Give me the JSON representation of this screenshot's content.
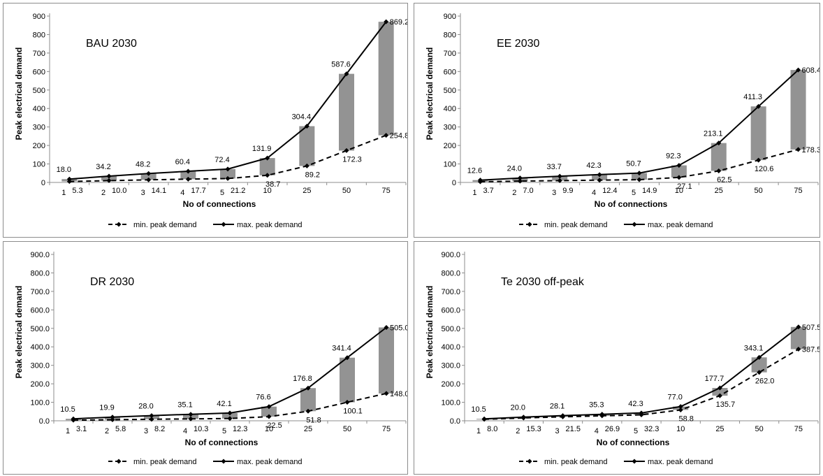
{
  "colors": {
    "bar": "#939393",
    "line": "#000000",
    "axis": "#8c8c8c"
  },
  "chart_data": [
    {
      "type": "line",
      "title": "BAU 2030",
      "xlabel": "No of connections",
      "ylabel": "Peak electrical demand",
      "ylim": [
        0,
        900
      ],
      "yticks": [
        "0",
        "100",
        "200",
        "300",
        "400",
        "500",
        "600",
        "700",
        "800",
        "900"
      ],
      "categories": [
        "1",
        "2",
        "3",
        "4",
        "5",
        "10",
        "25",
        "50",
        "75"
      ],
      "series": [
        {
          "name": "min. peak demand",
          "style": "dashed",
          "values": [
            5.3,
            10.0,
            14.1,
            17.7,
            21.2,
            38.7,
            89.2,
            172.3,
            254.8
          ],
          "labels": [
            "5.3",
            "10.0",
            "14.1",
            "17.7",
            "21.2",
            "38.7",
            "89.2",
            "172.3",
            "254.8"
          ]
        },
        {
          "name": "max. peak demand",
          "style": "solid",
          "values": [
            18.0,
            34.2,
            48.2,
            60.4,
            72.4,
            131.9,
            304.4,
            587.6,
            869.2
          ],
          "labels": [
            "18.0",
            "34.2",
            "48.2",
            "60.4",
            "72.4",
            "131.9",
            "304.4",
            "587.6",
            "869.2"
          ]
        }
      ],
      "legend": "bottom",
      "grid": false
    },
    {
      "type": "line",
      "title": "EE 2030",
      "xlabel": "No of connections",
      "ylabel": "Peak electrical demand",
      "ylim": [
        0,
        900
      ],
      "yticks": [
        "0",
        "100",
        "200",
        "300",
        "400",
        "500",
        "600",
        "700",
        "800",
        "900"
      ],
      "categories": [
        "1",
        "2",
        "3",
        "4",
        "5",
        "10",
        "25",
        "50",
        "75"
      ],
      "series": [
        {
          "name": "min. peak demand",
          "style": "dashed",
          "values": [
            3.7,
            7.0,
            9.9,
            12.4,
            14.9,
            27.1,
            62.5,
            120.6,
            178.3
          ],
          "labels": [
            "3.7",
            "7.0",
            "9.9",
            "12.4",
            "14.9",
            "27.1",
            "62.5",
            "120.6",
            "178.3"
          ]
        },
        {
          "name": "max. peak demand",
          "style": "solid",
          "values": [
            12.6,
            24.0,
            33.7,
            42.3,
            50.7,
            92.3,
            213.1,
            411.3,
            608.4
          ],
          "labels": [
            "12.6",
            "24.0",
            "33.7",
            "42.3",
            "50.7",
            "92.3",
            "213.1",
            "411.3",
            "608.4"
          ]
        }
      ],
      "legend": "bottom",
      "grid": false
    },
    {
      "type": "line",
      "title": "DR 2030",
      "xlabel": "No of connections",
      "ylabel": "Peak electrical demand",
      "ylim": [
        0,
        900
      ],
      "yticks": [
        "0.0",
        "100.0",
        "200.0",
        "300.0",
        "400.0",
        "500.0",
        "600.0",
        "700.0",
        "800.0",
        "900.0"
      ],
      "categories": [
        "1",
        "2",
        "3",
        "4",
        "5",
        "10",
        "25",
        "50",
        "75"
      ],
      "series": [
        {
          "name": "min. peak demand",
          "style": "dashed",
          "values": [
            3.1,
            5.8,
            8.2,
            10.3,
            12.3,
            22.5,
            51.8,
            100.1,
            148.0
          ],
          "labels": [
            "3.1",
            "5.8",
            "8.2",
            "10.3",
            "12.3",
            "22.5",
            "51.8",
            "100.1",
            "148.0"
          ]
        },
        {
          "name": "max. peak demand",
          "style": "solid",
          "values": [
            10.5,
            19.9,
            28.0,
            35.1,
            42.1,
            76.6,
            176.8,
            341.4,
            505.0
          ],
          "labels": [
            "10.5",
            "19.9",
            "28.0",
            "35.1",
            "42.1",
            "76.6",
            "176.8",
            "341.4",
            "505.0"
          ]
        }
      ],
      "legend": "bottom",
      "grid": false
    },
    {
      "type": "line",
      "title": "Te 2030 off-peak",
      "xlabel": "No of connections",
      "ylabel": "Peak electrical demand",
      "ylim": [
        0,
        900
      ],
      "yticks": [
        "0.0",
        "100.0",
        "200.0",
        "300.0",
        "400.0",
        "500.0",
        "600.0",
        "700.0",
        "800.0",
        "900.0"
      ],
      "categories": [
        "1",
        "2",
        "3",
        "4",
        "5",
        "10",
        "25",
        "50",
        "75"
      ],
      "series": [
        {
          "name": "min. peak demand",
          "style": "dashed",
          "values": [
            8.0,
            15.3,
            21.5,
            26.9,
            32.3,
            58.8,
            135.7,
            262.0,
            387.5
          ],
          "labels": [
            "8.0",
            "15.3",
            "21.5",
            "26.9",
            "32.3",
            "58.8",
            "135.7",
            "262.0",
            "387.5"
          ]
        },
        {
          "name": "max. peak demand",
          "style": "solid",
          "values": [
            10.5,
            20.0,
            28.1,
            35.3,
            42.3,
            77.0,
            177.7,
            343.1,
            507.5
          ],
          "labels": [
            "10.5",
            "20.0",
            "28.1",
            "35.3",
            "42.3",
            "77.0",
            "177.7",
            "343.1",
            "507.5"
          ]
        }
      ],
      "legend": "bottom",
      "grid": false
    }
  ]
}
